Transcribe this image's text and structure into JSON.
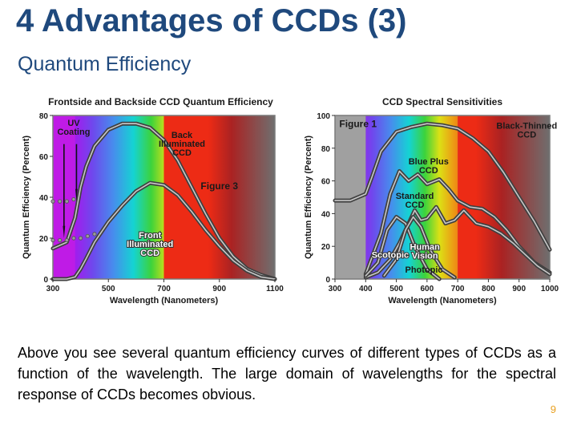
{
  "slide": {
    "title": "4 Advantages of CCDs (3)",
    "subtitle": "Quantum Efficiency",
    "body": "Above you see several quantum efficiency curves of different types of CCDs as a function of the wavelength. The large domain of wavelengths for the spectral response of CCDs becomes obvious.",
    "page_number": "9"
  },
  "colors": {
    "title": "#1f497d",
    "page_number": "#e8a020",
    "frame": "#7a7a7a"
  },
  "chart_data": [
    {
      "type": "line",
      "title": "Frontside and Backside CCD Quantum Efficiency",
      "xlabel": "Wavelength (Nanometers)",
      "ylabel": "Quantum Efficiency (Percent)",
      "xlim": [
        300,
        1100
      ],
      "ylim": [
        0,
        80
      ],
      "x_ticks": [
        300,
        500,
        700,
        900,
        1100
      ],
      "y_ticks": [
        0,
        20,
        40,
        60,
        80
      ],
      "x_tick_labels": [
        "300",
        "500",
        "700",
        "900",
        "1100"
      ],
      "y_tick_labels": [
        "0",
        "20",
        "40",
        "60",
        "80"
      ],
      "figure_label": "Figure 3",
      "annotations": {
        "uv_coating": [
          "UV",
          "Coating"
        ]
      },
      "series": [
        {
          "name": "Back Illuminated CCD",
          "label_lines": [
            "Back",
            "Illuminated",
            "CCD"
          ],
          "x": [
            300,
            350,
            380,
            400,
            420,
            450,
            500,
            550,
            600,
            650,
            700,
            750,
            800,
            850,
            900,
            950,
            1000,
            1050,
            1100
          ],
          "y": [
            15,
            18,
            30,
            45,
            55,
            65,
            73,
            76,
            76,
            74,
            68,
            58,
            45,
            32,
            20,
            11,
            5,
            2,
            0
          ]
        },
        {
          "name": "Front Illuminated CCD",
          "label_lines": [
            "Front",
            "Illuminated",
            "CCD"
          ],
          "x": [
            300,
            350,
            380,
            400,
            420,
            450,
            500,
            550,
            600,
            650,
            700,
            750,
            800,
            850,
            900,
            950,
            1000,
            1050,
            1100
          ],
          "y": [
            0,
            0,
            1,
            5,
            10,
            18,
            28,
            36,
            43,
            47,
            46,
            41,
            33,
            24,
            16,
            9,
            4,
            1,
            0
          ]
        },
        {
          "name": "UV Coating 40%",
          "x": [
            300,
            325,
            350,
            375
          ],
          "y": [
            38,
            38,
            38,
            39
          ]
        },
        {
          "name": "UV Coating 20%",
          "x": [
            300,
            325,
            350,
            375,
            400,
            425,
            450
          ],
          "y": [
            19,
            19,
            19,
            20,
            20,
            21,
            22
          ]
        }
      ]
    },
    {
      "type": "line",
      "title": "CCD Spectral Sensitivities",
      "xlabel": "Wavelength (Nanometers)",
      "ylabel": "Quantum Efficiency (Percent)",
      "xlim": [
        300,
        1000
      ],
      "ylim": [
        0,
        100
      ],
      "x_ticks": [
        300,
        400,
        500,
        600,
        700,
        800,
        900,
        1000
      ],
      "y_ticks": [
        0,
        20,
        40,
        60,
        80,
        100
      ],
      "x_tick_labels": [
        "300",
        "400",
        "500",
        "600",
        "700",
        "800",
        "900",
        "1000"
      ],
      "y_tick_labels": [
        "0",
        "20",
        "40",
        "60",
        "80",
        "100"
      ],
      "figure_label": "Figure 1",
      "series": [
        {
          "name": "Black-Thinned CCD",
          "label_lines": [
            "Black-Thinned",
            "CCD"
          ],
          "x": [
            300,
            350,
            400,
            420,
            450,
            500,
            550,
            600,
            650,
            700,
            750,
            800,
            850,
            900,
            950,
            1000
          ],
          "y": [
            48,
            48,
            52,
            62,
            78,
            90,
            93,
            95,
            94,
            92,
            86,
            78,
            65,
            50,
            35,
            18
          ]
        },
        {
          "name": "Blue Plus CCD",
          "label_lines": [
            "Blue Plus",
            "CCD"
          ],
          "x": [
            400,
            450,
            480,
            510,
            540,
            570,
            600,
            640,
            670,
            700,
            740,
            780,
            820,
            860,
            900,
            950,
            1000
          ],
          "y": [
            3,
            28,
            52,
            66,
            60,
            64,
            58,
            61,
            55,
            48,
            44,
            43,
            38,
            30,
            20,
            10,
            4
          ]
        },
        {
          "name": "Standard CCD",
          "label_lines": [
            "Standard",
            "CCD"
          ],
          "x": [
            400,
            440,
            480,
            510,
            540,
            560,
            580,
            600,
            630,
            660,
            690,
            720,
            760,
            800,
            840,
            880,
            920,
            960,
            1000
          ],
          "y": [
            1,
            4,
            12,
            22,
            34,
            42,
            36,
            37,
            44,
            34,
            36,
            42,
            34,
            32,
            28,
            22,
            15,
            8,
            3
          ]
        },
        {
          "name": "Scotopic",
          "x": [
            400,
            440,
            470,
            500,
            530,
            560,
            600,
            640
          ],
          "y": [
            2,
            10,
            30,
            38,
            34,
            20,
            6,
            0
          ]
        },
        {
          "name": "Human Vision Photopic",
          "label_lines": [
            "Human",
            "Vision"
          ],
          "extra_label": "Photopic",
          "x": [
            460,
            500,
            530,
            555,
            580,
            610,
            650,
            690
          ],
          "y": [
            2,
            12,
            30,
            38,
            32,
            18,
            6,
            1
          ]
        }
      ]
    }
  ]
}
